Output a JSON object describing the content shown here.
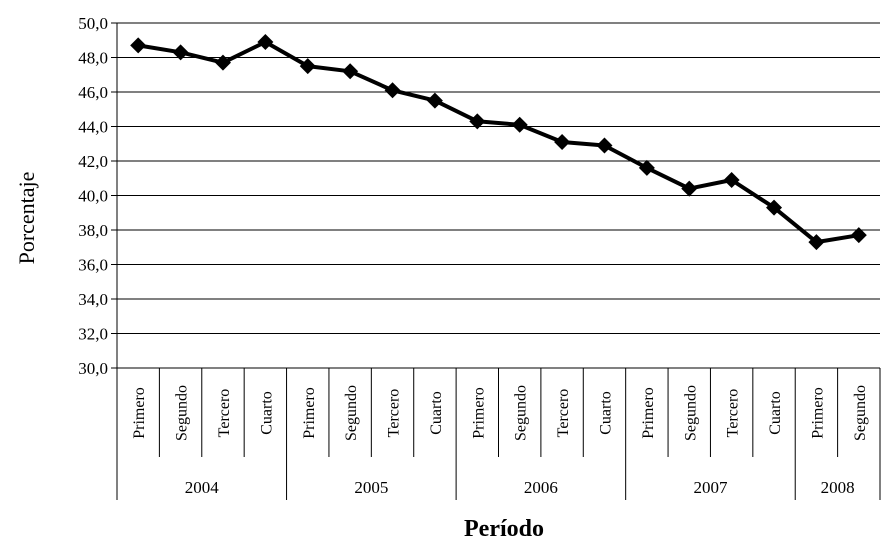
{
  "chart_data": {
    "type": "line",
    "title": "",
    "xlabel": "Período",
    "ylabel": "Porcentaje",
    "ylim": [
      30,
      50
    ],
    "yticks": [
      "30,0",
      "32,0",
      "34,0",
      "36,0",
      "38,0",
      "40,0",
      "42,0",
      "44,0",
      "46,0",
      "48,0",
      "50,0"
    ],
    "grid": true,
    "legend": "none",
    "line_color": "#000000",
    "categories": [
      "Primero",
      "Segundo",
      "Tercero",
      "Cuarto",
      "Primero",
      "Segundo",
      "Tercero",
      "Cuarto",
      "Primero",
      "Segundo",
      "Tercero",
      "Cuarto",
      "Primero",
      "Segundo",
      "Tercero",
      "Cuarto",
      "Primero",
      "Segundo"
    ],
    "year_groups": [
      {
        "year": "2004",
        "quarters": 4
      },
      {
        "year": "2005",
        "quarters": 4
      },
      {
        "year": "2006",
        "quarters": 4
      },
      {
        "year": "2007",
        "quarters": 4
      },
      {
        "year": "2008",
        "quarters": 2
      }
    ],
    "series": [
      {
        "values": [
          48.7,
          48.3,
          47.7,
          48.9,
          47.5,
          47.2,
          46.1,
          45.5,
          44.3,
          44.1,
          43.1,
          42.9,
          41.6,
          40.4,
          40.9,
          39.3,
          37.3,
          37.7
        ]
      }
    ]
  }
}
